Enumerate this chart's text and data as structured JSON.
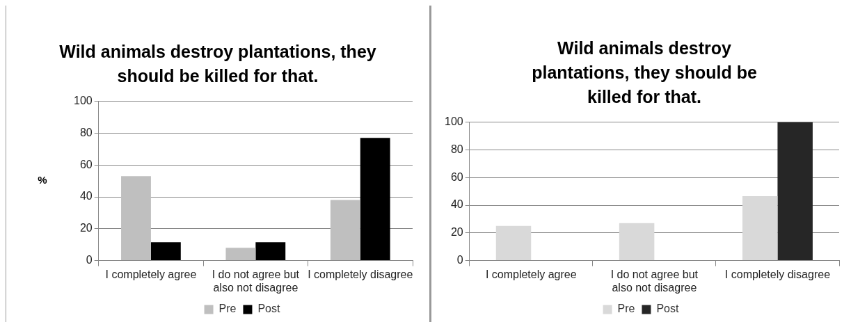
{
  "chart_data": [
    {
      "type": "bar",
      "title": "Wild animals destroy plantations, they should be killed for that.",
      "ylabel": "%",
      "categories": [
        "I completely agree",
        "I do not agree but also not disagree",
        "I completely disagree"
      ],
      "series": [
        {
          "name": "Pre",
          "color": "#bfbfbf",
          "values": [
            53,
            8,
            38
          ]
        },
        {
          "name": "Post",
          "color": "#000000",
          "values": [
            11.5,
            11.5,
            77
          ]
        }
      ],
      "ylim": [
        0,
        100
      ],
      "yticks": [
        0,
        20,
        40,
        60,
        80,
        100
      ],
      "grid": "y",
      "legend": "bottom"
    },
    {
      "type": "bar",
      "title": "Wild animals destroy plantations, they should be killed for that.",
      "categories": [
        "I completely agree",
        "I do not agree but also not disagree",
        "I completely disagree"
      ],
      "series": [
        {
          "name": "Pre",
          "color": "#d9d9d9",
          "values": [
            25,
            27,
            46.5
          ]
        },
        {
          "name": "Post",
          "color": "#262626",
          "values": [
            0,
            0,
            100
          ]
        }
      ],
      "ylim": [
        0,
        100
      ],
      "yticks": [
        0,
        20,
        40,
        60,
        80,
        100
      ],
      "grid": "y",
      "legend": "bottom"
    }
  ]
}
